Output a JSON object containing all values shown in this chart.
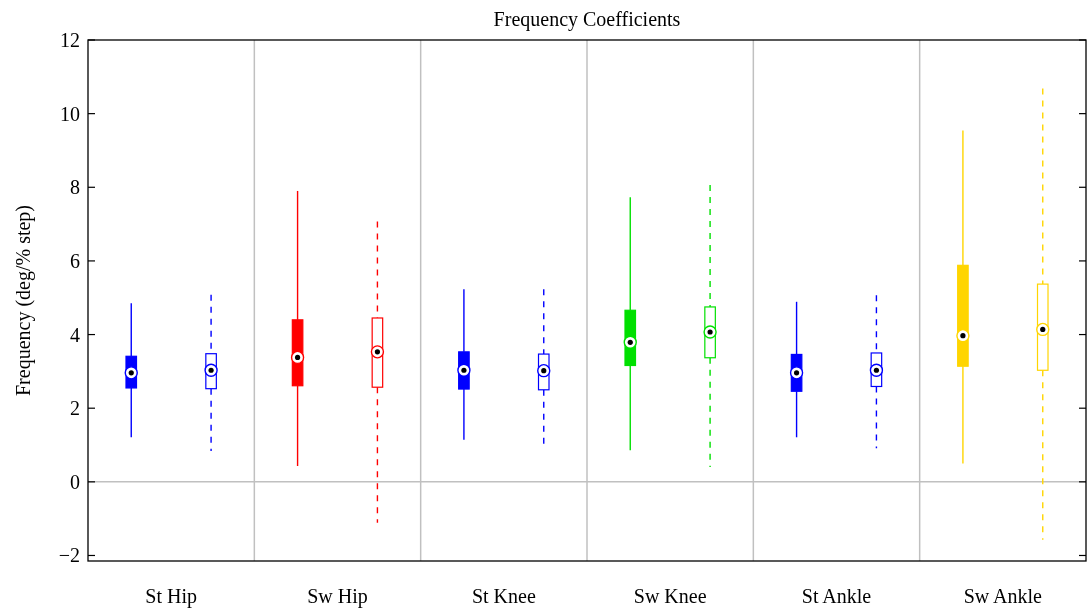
{
  "chart_data": {
    "type": "box",
    "title": "Frequency Coefficients",
    "ylabel": "Frequency (deg/% step)",
    "categories": [
      "St Hip",
      "Sw Hip",
      "St Knee",
      "Sw Knee",
      "St Ankle",
      "Sw Ankle"
    ],
    "ylim": [
      -2.15,
      12
    ],
    "yticks": [
      {
        "value": -2,
        "label": "−2"
      },
      0,
      2,
      4,
      6,
      8,
      10,
      12
    ],
    "grid": "x",
    "ref_lines": [
      {
        "axis": "y",
        "value": 0,
        "color": "#c0c0c0"
      }
    ],
    "series": [
      {
        "colors": [
          "#0000ff",
          "#ff0000",
          "#0000ff",
          "#00e000",
          "#0000ff",
          "#ffd500"
        ],
        "line_style": "solid",
        "boxes": [
          {
            "low": 1.21,
            "q1": 2.55,
            "median": 2.96,
            "q3": 3.41,
            "high": 4.85
          },
          {
            "low": 0.43,
            "q1": 2.61,
            "median": 3.38,
            "q3": 4.4,
            "high": 7.9
          },
          {
            "low": 1.14,
            "q1": 2.52,
            "median": 3.03,
            "q3": 3.53,
            "high": 5.23
          },
          {
            "low": 0.86,
            "q1": 3.16,
            "median": 3.79,
            "q3": 4.66,
            "high": 7.73
          },
          {
            "low": 1.21,
            "q1": 2.46,
            "median": 2.96,
            "q3": 3.46,
            "high": 4.89
          },
          {
            "low": 0.5,
            "q1": 3.14,
            "median": 3.97,
            "q3": 5.88,
            "high": 9.54
          }
        ]
      },
      {
        "colors": [
          "#0000ff",
          "#ff0000",
          "#0000ff",
          "#00e000",
          "#0000ff",
          "#ffd500"
        ],
        "line_style": "dashed",
        "boxes": [
          {
            "low": 0.84,
            "q1": 2.53,
            "median": 3.03,
            "q3": 3.48,
            "high": 5.08
          },
          {
            "low": -1.11,
            "q1": 2.57,
            "median": 3.53,
            "q3": 4.45,
            "high": 7.07
          },
          {
            "low": 0.96,
            "q1": 2.5,
            "median": 3.02,
            "q3": 3.47,
            "high": 5.23
          },
          {
            "low": 0.4,
            "q1": 3.37,
            "median": 4.07,
            "q3": 4.75,
            "high": 8.06
          },
          {
            "low": 0.91,
            "q1": 2.59,
            "median": 3.03,
            "q3": 3.5,
            "high": 5.07
          },
          {
            "low": -1.57,
            "q1": 3.03,
            "median": 4.14,
            "q3": 5.37,
            "high": 10.68
          }
        ]
      }
    ]
  }
}
